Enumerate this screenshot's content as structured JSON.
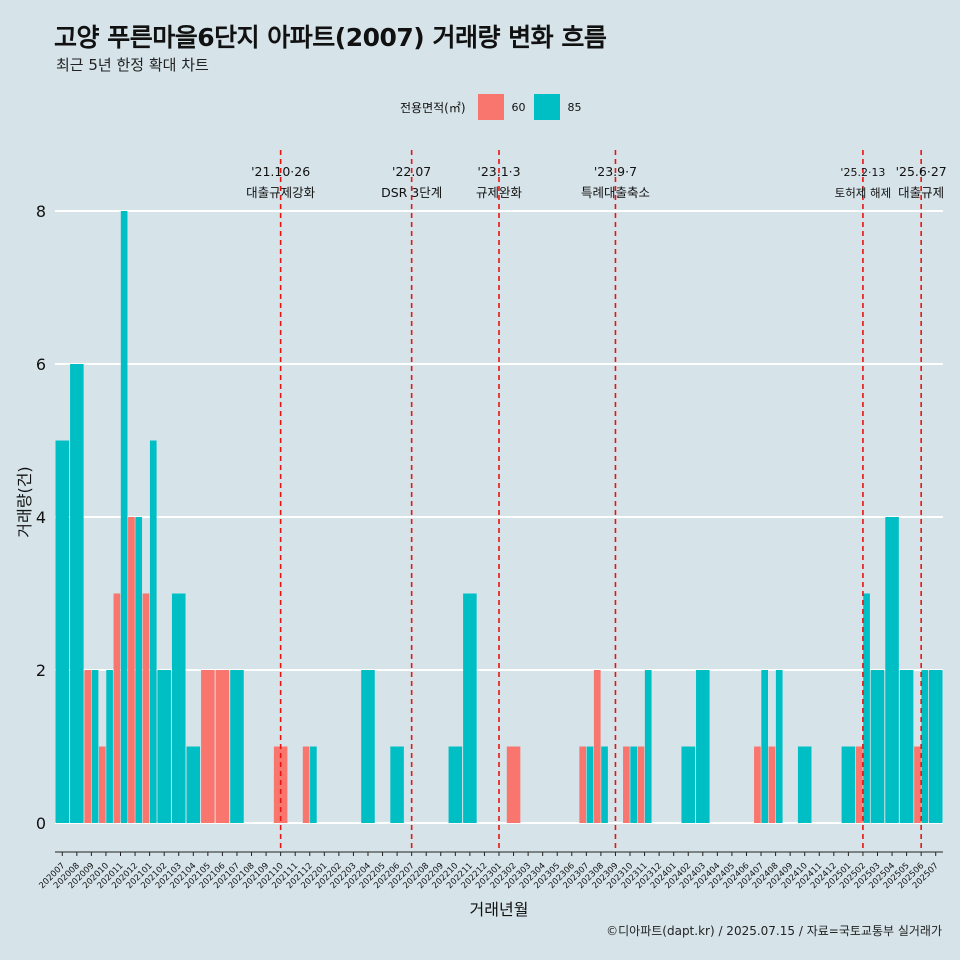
{
  "title": "고양 푸른마을6단지 아파트(2007) 거래량 변화 흐름",
  "subtitle": "최근 5년 한정 확대 차트",
  "caption": "©디아파트(dapt.kr) / 2025.07.15 / 자료=국토교통부 실거래가",
  "legend": {
    "title": "전용면적(㎡)",
    "items": [
      {
        "label": "60",
        "color": "#f8766d"
      },
      {
        "label": "85",
        "color": "#00bfc4"
      }
    ]
  },
  "chart_data": {
    "type": "bar",
    "xlabel": "거래년월",
    "ylabel": "거래량(건)",
    "ylim": [
      0,
      8.5
    ],
    "yticks": [
      0,
      2,
      4,
      6,
      8
    ],
    "categories": [
      "202007",
      "202008",
      "202009",
      "202010",
      "202011",
      "202012",
      "202101",
      "202102",
      "202103",
      "202104",
      "202105",
      "202106",
      "202107",
      "202108",
      "202109",
      "202110",
      "202111",
      "202112",
      "202201",
      "202202",
      "202203",
      "202204",
      "202205",
      "202206",
      "202207",
      "202208",
      "202209",
      "202210",
      "202211",
      "202212",
      "202301",
      "202302",
      "202303",
      "202304",
      "202305",
      "202306",
      "202307",
      "202308",
      "202309",
      "202310",
      "202311",
      "202312",
      "202401",
      "202402",
      "202403",
      "202404",
      "202405",
      "202406",
      "202407",
      "202408",
      "202409",
      "202410",
      "202411",
      "202412",
      "202501",
      "202502",
      "202503",
      "202504",
      "202505",
      "202506",
      "202507"
    ],
    "series": [
      {
        "name": "60",
        "color": "#f8766d",
        "values": [
          0,
          0,
          2,
          1,
          3,
          4,
          3,
          0,
          0,
          0,
          2,
          2,
          0,
          0,
          0,
          1,
          0,
          1,
          0,
          0,
          0,
          0,
          0,
          0,
          0,
          0,
          0,
          0,
          0,
          0,
          0,
          1,
          0,
          0,
          0,
          0,
          1,
          2,
          0,
          1,
          1,
          0,
          0,
          0,
          0,
          0,
          0,
          0,
          1,
          1,
          0,
          0,
          0,
          0,
          0,
          1,
          0,
          0,
          0,
          1,
          0
        ]
      },
      {
        "name": "85",
        "color": "#00bfc4",
        "values": [
          5,
          6,
          2,
          2,
          8,
          4,
          5,
          2,
          3,
          1,
          0,
          0,
          2,
          0,
          0,
          0,
          0,
          1,
          0,
          0,
          0,
          2,
          0,
          1,
          0,
          0,
          0,
          1,
          3,
          0,
          0,
          0,
          0,
          0,
          0,
          0,
          1,
          1,
          0,
          1,
          2,
          0,
          0,
          1,
          2,
          0,
          0,
          0,
          2,
          2,
          0,
          1,
          0,
          0,
          1,
          3,
          2,
          4,
          2,
          2,
          2
        ]
      }
    ],
    "annotations": [
      {
        "category": "202110",
        "date": "'21.10·26",
        "label": "대출규제강화"
      },
      {
        "category": "202207",
        "date": "'22.07",
        "label": "DSR 3단계"
      },
      {
        "category": "202301",
        "date": "'23.1·3",
        "label": "규제완화"
      },
      {
        "category": "202309",
        "date": "'23.9·7",
        "label": "특례대출축소"
      },
      {
        "category": "202502",
        "date": "'25.2·13",
        "label": "토허제 해제"
      },
      {
        "category": "202506",
        "date": "'25.6·27",
        "label": "대출규제"
      }
    ]
  }
}
